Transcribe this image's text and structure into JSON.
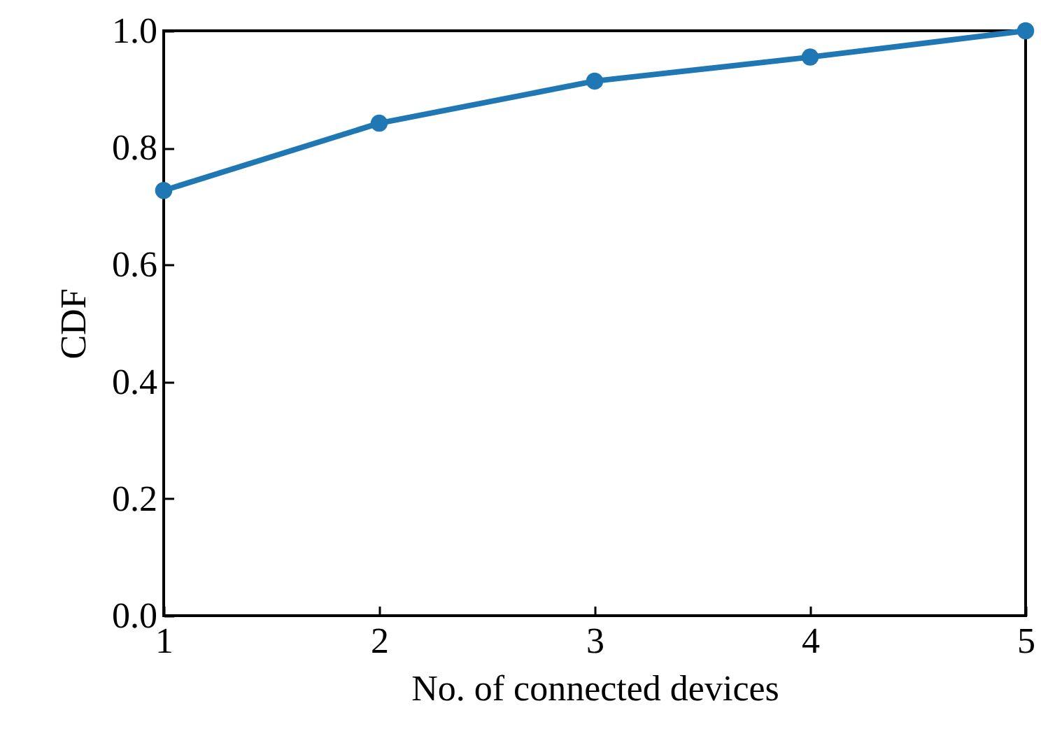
{
  "chart_data": {
    "type": "line",
    "xlabel": "No. of connected devices",
    "ylabel": "CDF",
    "x": [
      1,
      2,
      3,
      4,
      5
    ],
    "series": [
      {
        "color": "#1f77b4",
        "values": [
          0.727,
          0.842,
          0.914,
          0.955,
          1.0
        ]
      }
    ],
    "xlim": [
      1,
      5
    ],
    "xticks": [
      1,
      2,
      3,
      4,
      5
    ],
    "ylim": [
      0,
      1
    ],
    "yticks": [
      {
        "value": 0,
        "label": "0.0"
      },
      {
        "value": 0.2,
        "label": "0.2"
      },
      {
        "value": 0.4,
        "label": "0.4"
      },
      {
        "value": 0.6,
        "label": "0.6"
      },
      {
        "value": 0.8,
        "label": "0.8"
      },
      {
        "value": 1,
        "label": "1.0"
      }
    ],
    "grid": false,
    "marker": "circle",
    "line_style": "solid"
  }
}
